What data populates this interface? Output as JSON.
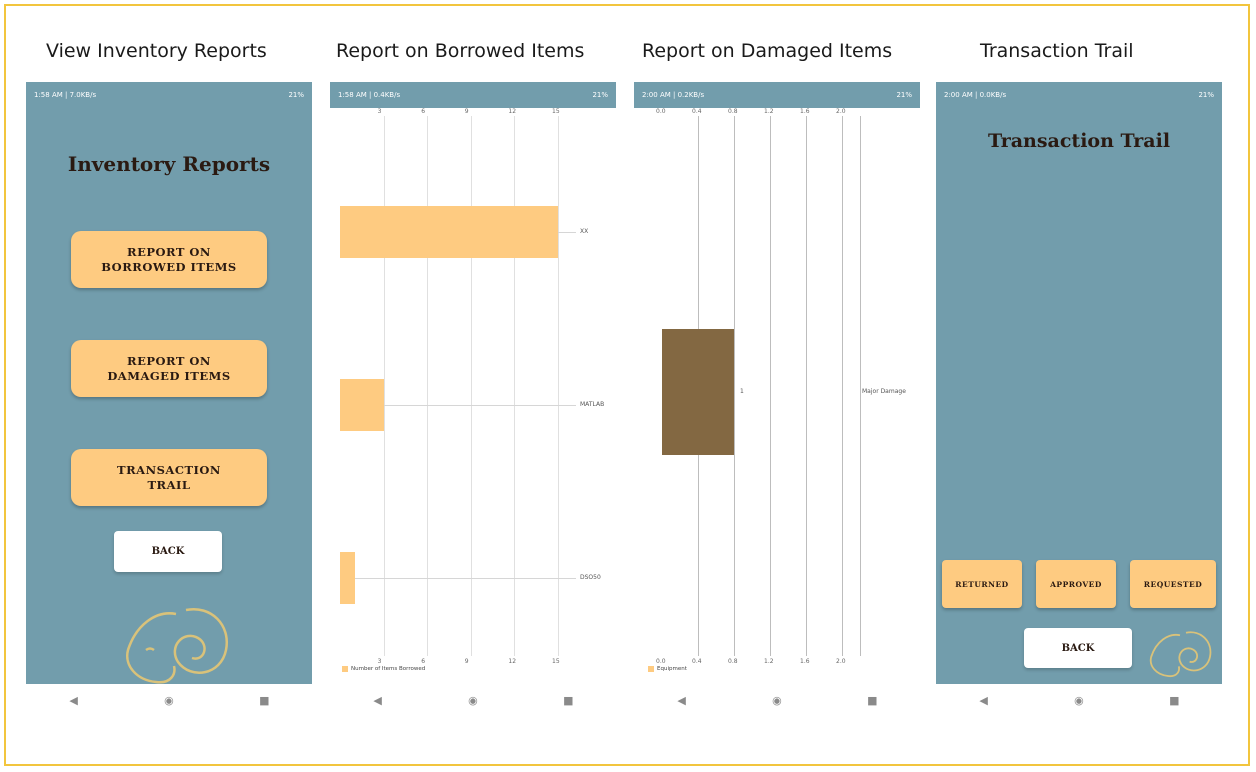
{
  "captions": {
    "s1": "View Inventory Reports",
    "s2": "Report on Borrowed Items",
    "s3": "Report on Damaged Items",
    "s4": "Transaction Trail"
  },
  "status": {
    "s1_left": "1:58 AM | 7.0KB/s",
    "s2_left": "1:58 AM | 0.4KB/s",
    "s3_left": "2:00 AM | 0.2KB/s",
    "s4_left": "2:00 AM | 0.0KB/s",
    "right": "21%"
  },
  "screen1": {
    "title": "Inventory Reports",
    "btn_borrowed": "REPORT ON\nBORROWED ITEMS",
    "btn_damaged": "REPORT ON\nDAMAGED ITEMS",
    "btn_trail": "TRANSACTION\nTRAIL",
    "btn_back": "BACK"
  },
  "screen4": {
    "title": "Transaction Trail",
    "btn_returned": "RETURNED",
    "btn_approved": "APPROVED",
    "btn_requested": "REQUESTED",
    "btn_back": "BACK"
  },
  "nav": {
    "back": "◀",
    "home": "◉",
    "recent": "■"
  },
  "colors": {
    "screen_bg": "#729dac",
    "button": "#fecb81",
    "bar_damaged": "#836842"
  },
  "chart_data": [
    {
      "type": "bar",
      "orientation": "horizontal",
      "categories": [
        "XX",
        "MATLAB",
        "DSO50"
      ],
      "series": [
        {
          "name": "Number of Items Borrowed",
          "values": [
            15,
            3,
            1
          ]
        }
      ],
      "xticks": [
        "3",
        "6",
        "9",
        "12",
        "15"
      ],
      "xlim": [
        0,
        15
      ]
    },
    {
      "type": "bar",
      "orientation": "horizontal",
      "categories": [
        "Major Damage"
      ],
      "series": [
        {
          "name": "Equipment",
          "values": [
            0.8
          ]
        }
      ],
      "bar_label": "1",
      "xticks": [
        "0.0",
        "0.4",
        "0.8",
        "1.2",
        "1.6",
        "2.0"
      ],
      "xlim": [
        0,
        2.0
      ]
    }
  ]
}
